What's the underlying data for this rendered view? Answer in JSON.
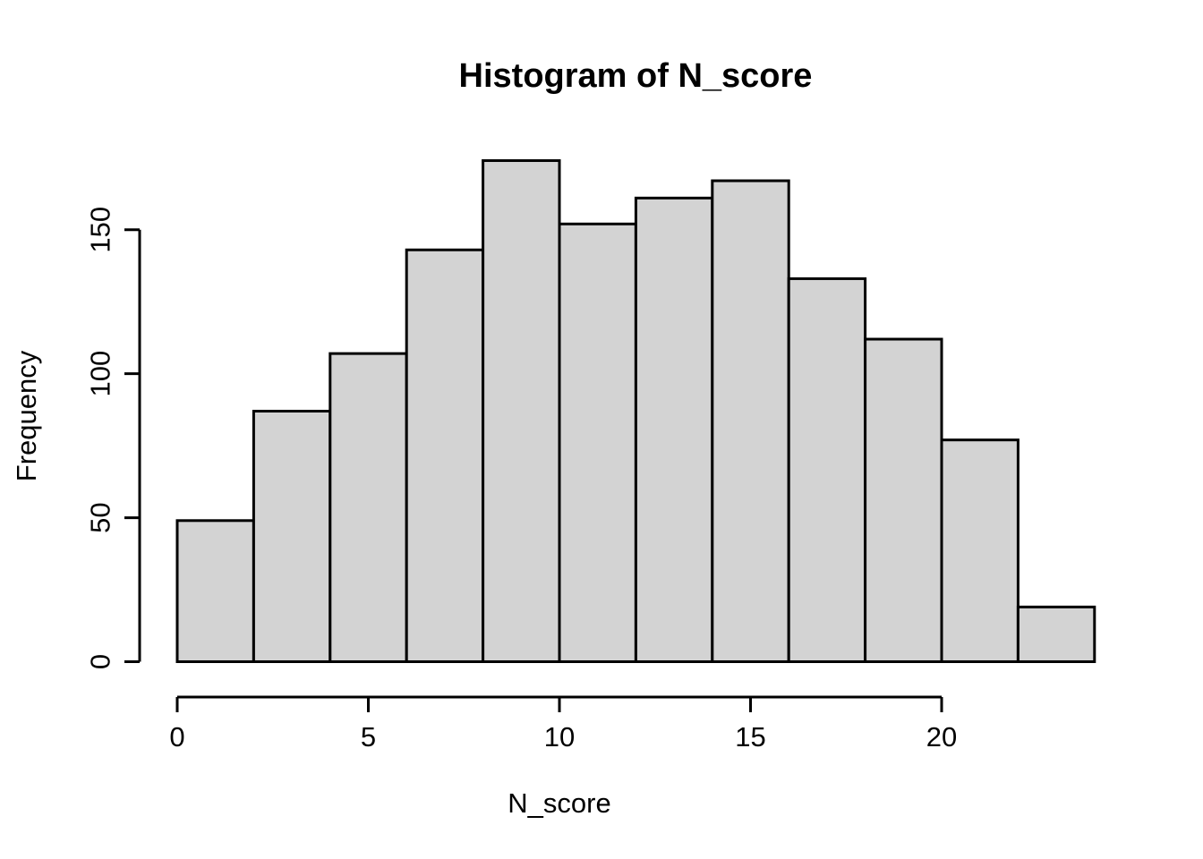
{
  "page": {
    "background": "#ffffff"
  },
  "chart_data": {
    "type": "bar",
    "style": "r-base-histogram",
    "title": "Histogram of N_score",
    "xlabel": "N_score",
    "ylabel": "Frequency",
    "bin_edges": [
      0,
      2,
      4,
      6,
      8,
      10,
      12,
      14,
      16,
      18,
      20,
      22,
      24
    ],
    "counts": [
      49,
      87,
      107,
      143,
      174,
      152,
      161,
      167,
      133,
      112,
      77,
      19
    ],
    "x_ticks": [
      0,
      5,
      10,
      15,
      20
    ],
    "y_ticks": [
      0,
      50,
      100,
      150
    ],
    "xlim": [
      0,
      24
    ],
    "ylim": [
      0,
      174
    ],
    "grid": false,
    "legend": "none",
    "bar_fill": "#d3d3d3",
    "bar_stroke": "#000000",
    "axis_color": "#000000",
    "text_color": "#000000"
  }
}
